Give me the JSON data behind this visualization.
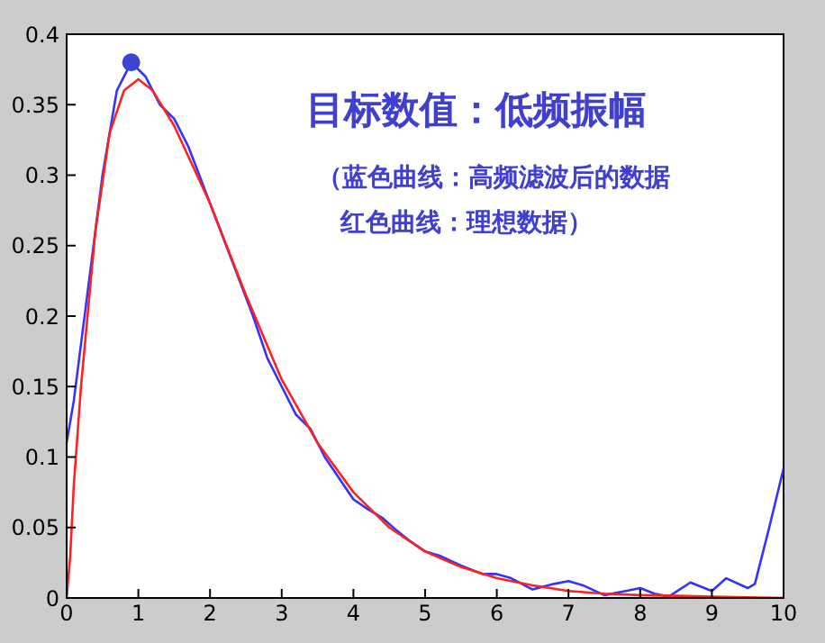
{
  "chart_data": {
    "type": "line",
    "xlim": [
      0,
      10
    ],
    "ylim": [
      0,
      0.4
    ],
    "xticks": [
      0,
      1,
      2,
      3,
      4,
      5,
      6,
      7,
      8,
      9,
      10
    ],
    "yticks": [
      0,
      0.05,
      0.1,
      0.15,
      0.2,
      0.25,
      0.3,
      0.35,
      0.4
    ],
    "marker": "none",
    "line_style": "solid",
    "annotations": [
      "目标数值：低频振幅",
      "（蓝色曲线：高频滤波后的数据",
      "红色曲线：理想数据）"
    ],
    "series": [
      {
        "color": "#3333ff",
        "x": [
          0,
          0.1,
          0.3,
          0.5,
          0.7,
          0.9,
          1.1,
          1.3,
          1.5,
          1.7,
          2.0,
          2.3,
          2.6,
          2.8,
          3.0,
          3.2,
          3.4,
          3.6,
          3.8,
          4.0,
          4.2,
          4.4,
          4.6,
          4.8,
          5.0,
          5.2,
          5.5,
          5.8,
          6.0,
          6.2,
          6.5,
          6.8,
          7.0,
          7.2,
          7.5,
          7.8,
          8.0,
          8.2,
          8.4,
          8.7,
          9.0,
          9.2,
          9.5,
          9.6,
          9.8,
          10
        ],
        "values": [
          0.11,
          0.14,
          0.22,
          0.3,
          0.36,
          0.38,
          0.37,
          0.35,
          0.34,
          0.32,
          0.28,
          0.24,
          0.2,
          0.17,
          0.15,
          0.13,
          0.12,
          0.1,
          0.085,
          0.07,
          0.063,
          0.057,
          0.048,
          0.04,
          0.033,
          0.03,
          0.023,
          0.017,
          0.017,
          0.014,
          0.006,
          0.01,
          0.012,
          0.009,
          0.002,
          0.005,
          0.007,
          0.003,
          0.001,
          0.011,
          0.005,
          0.014,
          0.007,
          0.01,
          0.05,
          0.092
        ]
      },
      {
        "color": "#ff2020",
        "x": [
          0,
          0.05,
          0.1,
          0.2,
          0.4,
          0.6,
          0.8,
          1.0,
          1.2,
          1.5,
          2.0,
          2.5,
          3.0,
          3.5,
          4.0,
          4.5,
          5.0,
          5.5,
          6.0,
          6.5,
          7.0,
          7.5,
          8.0,
          9.0,
          10
        ],
        "values": [
          0,
          0.03,
          0.08,
          0.15,
          0.26,
          0.33,
          0.36,
          0.368,
          0.36,
          0.335,
          0.28,
          0.215,
          0.155,
          0.11,
          0.075,
          0.05,
          0.033,
          0.022,
          0.014,
          0.009,
          0.005,
          0.003,
          0.002,
          0.001,
          0
        ]
      },
      {
        "type": "scatter",
        "marker": "circle",
        "color": "#3c46d2",
        "x": [
          0.9
        ],
        "values": [
          0.38
        ]
      }
    ]
  }
}
